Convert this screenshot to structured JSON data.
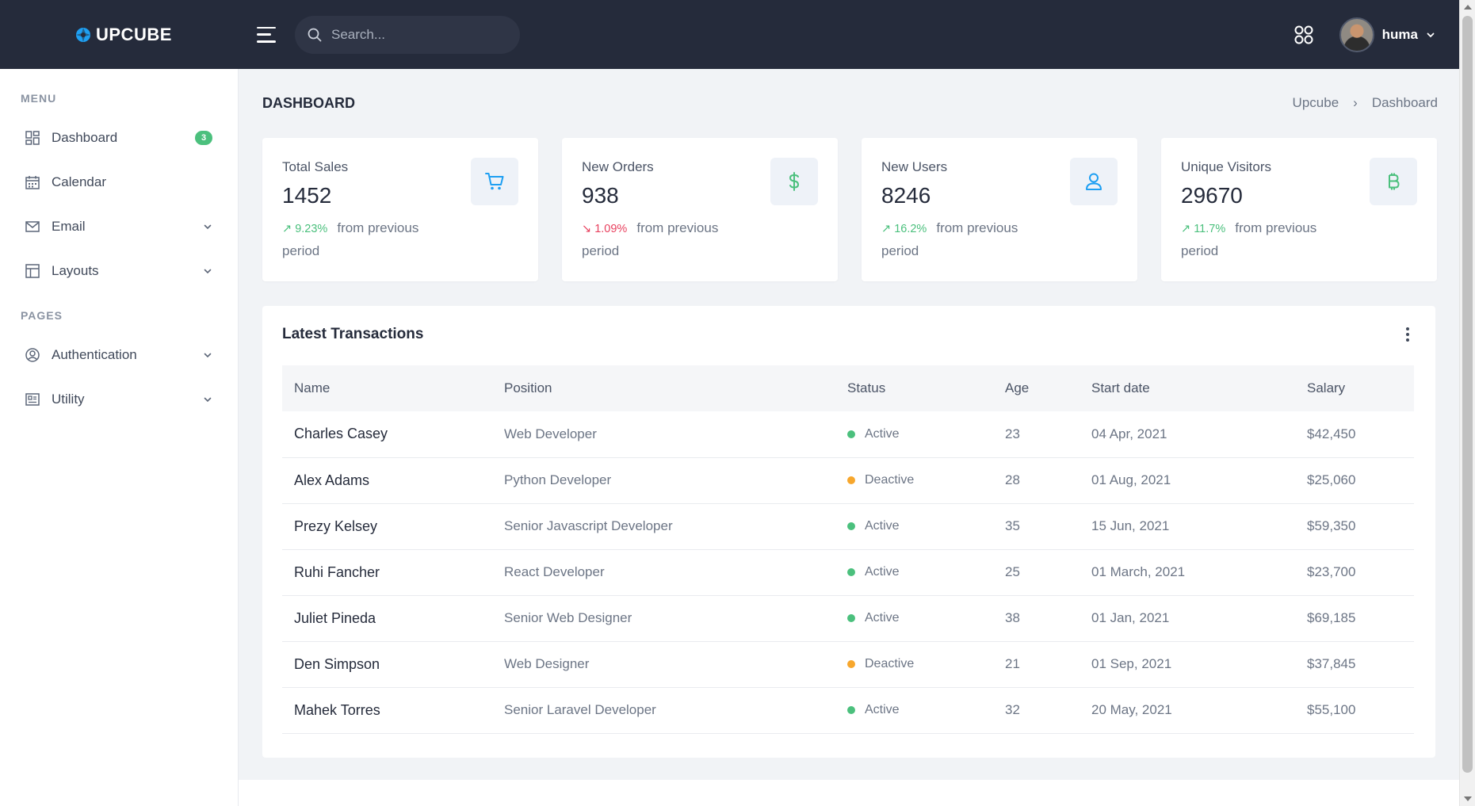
{
  "topbar": {
    "brand": "UPCUBE",
    "search_placeholder": "Search...",
    "user_name": "huma",
    "icons": [
      "menu-icon",
      "search-icon",
      "apps-grid-icon",
      "chevron-down-icon"
    ]
  },
  "sidebar": {
    "sections": [
      {
        "title": "MENU",
        "items": [
          {
            "label": "Dashboard",
            "icon": "dashboard-icon",
            "badge": "3"
          },
          {
            "label": "Calendar",
            "icon": "calendar-icon"
          },
          {
            "label": "Email",
            "icon": "email-icon",
            "has_submenu": true
          },
          {
            "label": "Layouts",
            "icon": "layout-icon",
            "has_submenu": true
          }
        ]
      },
      {
        "title": "PAGES",
        "items": [
          {
            "label": "Authentication",
            "icon": "user-circle-icon",
            "has_submenu": true
          },
          {
            "label": "Utility",
            "icon": "utility-icon",
            "has_submenu": true
          }
        ]
      }
    ]
  },
  "page": {
    "title": "DASHBOARD",
    "breadcrumb": [
      "Upcube",
      "Dashboard"
    ]
  },
  "stats": [
    {
      "title": "Total Sales",
      "value": "1452",
      "trend": "9.23%",
      "direction": "up",
      "suffix": "from previous period",
      "icon": "cart-icon"
    },
    {
      "title": "New Orders",
      "value": "938",
      "trend": "1.09%",
      "direction": "down",
      "suffix": "from previous period",
      "icon": "dollar-icon"
    },
    {
      "title": "New Users",
      "value": "8246",
      "trend": "16.2%",
      "direction": "up",
      "suffix": "from previous period",
      "icon": "user-icon"
    },
    {
      "title": "Unique Visitors",
      "value": "29670",
      "trend": "11.7%",
      "direction": "up",
      "suffix": "from previous period",
      "icon": "bitcoin-icon"
    }
  ],
  "transactions": {
    "title": "Latest Transactions",
    "columns": [
      "Name",
      "Position",
      "Status",
      "Age",
      "Start date",
      "Salary"
    ],
    "rows": [
      {
        "name": "Charles Casey",
        "position": "Web Developer",
        "status": "Active",
        "age": "23",
        "start": "04 Apr, 2021",
        "salary": "$42,450"
      },
      {
        "name": "Alex Adams",
        "position": "Python Developer",
        "status": "Deactive",
        "age": "28",
        "start": "01 Aug, 2021",
        "salary": "$25,060"
      },
      {
        "name": "Prezy Kelsey",
        "position": "Senior Javascript Developer",
        "status": "Active",
        "age": "35",
        "start": "15 Jun, 2021",
        "salary": "$59,350"
      },
      {
        "name": "Ruhi Fancher",
        "position": "React Developer",
        "status": "Active",
        "age": "25",
        "start": "01 March, 2021",
        "salary": "$23,700"
      },
      {
        "name": "Juliet Pineda",
        "position": "Senior Web Designer",
        "status": "Active",
        "age": "38",
        "start": "01 Jan, 2021",
        "salary": "$69,185"
      },
      {
        "name": "Den Simpson",
        "position": "Web Designer",
        "status": "Deactive",
        "age": "21",
        "start": "01 Sep, 2021",
        "salary": "$37,845"
      },
      {
        "name": "Mahek Torres",
        "position": "Senior Laravel Developer",
        "status": "Active",
        "age": "32",
        "start": "20 May, 2021",
        "salary": "$55,100"
      }
    ]
  },
  "colors": {
    "topbar_bg": "#252b3b",
    "accent_green": "#4bc07d",
    "accent_red": "#e8405e",
    "accent_orange": "#f7a72d",
    "accent_blue": "#1e9ff2"
  }
}
